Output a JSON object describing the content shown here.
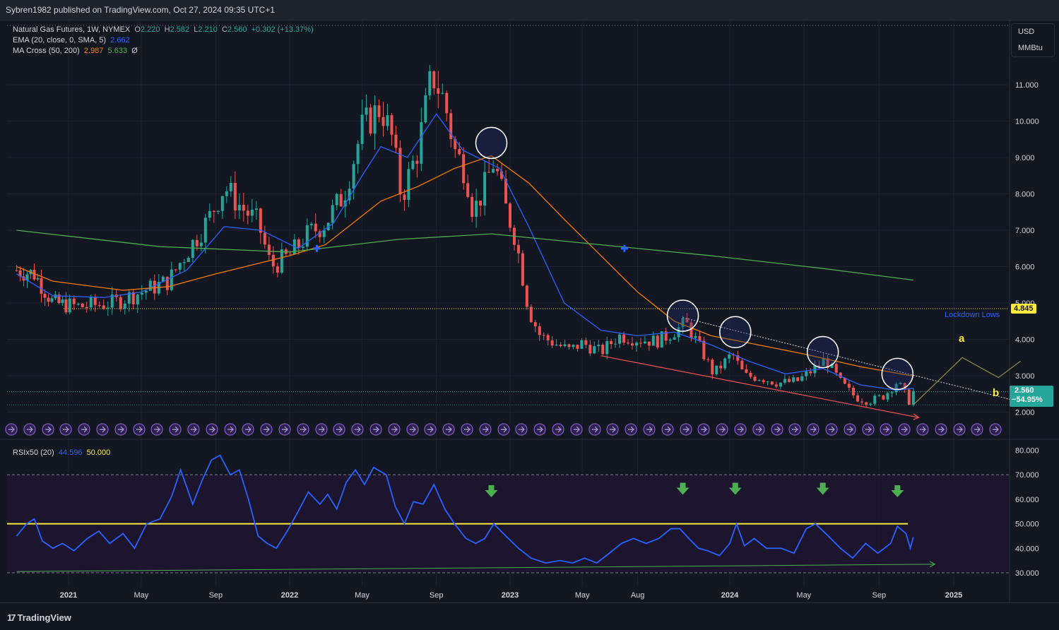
{
  "header": {
    "publisher": "Sybren1982 published on TradingView.com, Oct 27, 2024 09:35 UTC+1"
  },
  "legend": {
    "symbol": "Natural Gas Futures, 1W, NYMEX",
    "ohlc": {
      "o_label": "O",
      "o": "2.220",
      "h_label": "H",
      "h": "2.582",
      "l_label": "L",
      "l": "2.210",
      "c_label": "C",
      "c": "2.560",
      "change": "+0.302 (+13.37%)"
    },
    "ema_label": "EMA (20, close, 0, SMA, 5)",
    "ema_value": "2.662",
    "ma_label": "MA Cross (50, 200)",
    "ma_fast": "2.987",
    "ma_slow": "5.633",
    "ma_extra": "Ø"
  },
  "rsi_legend": {
    "label": "RSIx50 (20)",
    "value": "44.596",
    "level": "50.000"
  },
  "units": {
    "currency": "USD",
    "unit": "MMBtu"
  },
  "tags": {
    "lockdown_label": "Lockdown Lows",
    "lockdown_value": "4.845",
    "price": "2.560",
    "pct": "−54.95%",
    "wave_a": "a",
    "wave_b": "b"
  },
  "footer": {
    "brand": "TradingView"
  },
  "colors": {
    "up": "#26a69a",
    "down": "#ef5350",
    "ema": "#2962ff",
    "ma_fast": "#f57c00",
    "ma_slow": "#4caf50",
    "rsi": "#2962ff",
    "rsi_mid": "#ffeb3b",
    "bg": "#131722"
  },
  "chart_data": [
    {
      "type": "candlestick",
      "title": "Natural Gas Futures, 1W, NYMEX",
      "ylabel": "USD / MMBtu",
      "ylim": [
        1.7,
        12.0
      ],
      "yticks": [
        "11.000",
        "10.000",
        "9.000",
        "8.000",
        "7.000",
        "6.000",
        "5.000",
        "4.000",
        "3.000",
        "2.000"
      ],
      "xticks": [
        "2021",
        "May",
        "Sep",
        "2022",
        "May",
        "Sep",
        "2023",
        "May",
        "Aug",
        "2024",
        "May",
        "Sep",
        "2025"
      ],
      "x_range": [
        "2020-09",
        "2025-04"
      ],
      "close_path": [
        [
          "2020-09-20",
          5.9
        ],
        [
          "2020-10-25",
          5.8
        ],
        [
          "2020-12-01",
          5.0
        ],
        [
          "2021-01-20",
          4.9
        ],
        [
          "2021-03-15",
          5.0
        ],
        [
          "2021-05-01",
          5.3
        ],
        [
          "2021-06-15",
          5.6
        ],
        [
          "2021-07-15",
          6.4
        ],
        [
          "2021-08-20",
          7.3
        ],
        [
          "2021-09-15",
          8.2
        ],
        [
          "2021-10-15",
          7.6
        ],
        [
          "2021-11-10",
          7.2
        ],
        [
          "2021-12-01",
          6.0
        ],
        [
          "2022-01-01",
          6.3
        ],
        [
          "2022-02-01",
          6.9
        ],
        [
          "2022-03-01",
          7.2
        ],
        [
          "2022-04-01",
          8.0
        ],
        [
          "2022-05-01",
          9.8
        ],
        [
          "2022-06-01",
          10.4
        ],
        [
          "2022-06-20",
          9.5
        ],
        [
          "2022-07-05",
          7.9
        ],
        [
          "2022-08-01",
          9.2
        ],
        [
          "2022-08-25",
          11.3
        ],
        [
          "2022-09-15",
          10.5
        ],
        [
          "2022-10-01",
          9.2
        ],
        [
          "2022-10-20",
          8.6
        ],
        [
          "2022-11-01",
          7.5
        ],
        [
          "2022-11-20",
          8.2
        ],
        [
          "2022-12-05",
          8.9
        ],
        [
          "2022-12-25",
          7.6
        ],
        [
          "2023-01-10",
          6.8
        ],
        [
          "2023-02-01",
          4.8
        ],
        [
          "2023-02-20",
          4.1
        ],
        [
          "2023-03-15",
          3.9
        ],
        [
          "2023-04-10",
          3.7
        ],
        [
          "2023-05-01",
          3.9
        ],
        [
          "2023-06-01",
          3.65
        ],
        [
          "2023-07-01",
          4.1
        ],
        [
          "2023-08-01",
          4.0
        ],
        [
          "2023-09-01",
          3.95
        ],
        [
          "2023-09-20",
          4.1
        ],
        [
          "2023-10-20",
          4.45
        ],
        [
          "2023-11-15",
          3.7
        ],
        [
          "2023-12-05",
          3.05
        ],
        [
          "2024-01-05",
          3.6
        ],
        [
          "2024-01-25",
          3.0
        ],
        [
          "2024-02-20",
          2.95
        ],
        [
          "2024-03-20",
          2.8
        ],
        [
          "2024-04-20",
          2.85
        ],
        [
          "2024-05-15",
          3.15
        ],
        [
          "2024-06-05",
          3.45
        ],
        [
          "2024-07-01",
          2.8
        ],
        [
          "2024-07-25",
          2.4
        ],
        [
          "2024-08-15",
          2.3
        ],
        [
          "2024-09-10",
          2.45
        ],
        [
          "2024-10-01",
          2.85
        ],
        [
          "2024-10-20",
          2.3
        ],
        [
          "2024-10-27",
          2.56
        ]
      ],
      "series": [
        {
          "name": "EMA (20, close, 0, SMA, 5)",
          "points": [
            [
              "2020-09-20",
              5.8
            ],
            [
              "2020-12-01",
              5.2
            ],
            [
              "2021-03-01",
              5.15
            ],
            [
              "2021-05-01",
              5.3
            ],
            [
              "2021-07-15",
              5.9
            ],
            [
              "2021-09-15",
              7.1
            ],
            [
              "2021-11-15",
              7.0
            ],
            [
              "2022-01-15",
              6.5
            ],
            [
              "2022-03-15",
              7.2
            ],
            [
              "2022-05-01",
              8.5
            ],
            [
              "2022-06-01",
              9.3
            ],
            [
              "2022-07-15",
              9.0
            ],
            [
              "2022-09-01",
              10.2
            ],
            [
              "2022-10-15",
              9.2
            ],
            [
              "2022-12-15",
              8.7
            ],
            [
              "2023-02-01",
              7.1
            ],
            [
              "2023-04-01",
              5.0
            ],
            [
              "2023-06-01",
              4.25
            ],
            [
              "2023-08-01",
              4.1
            ],
            [
              "2023-10-01",
              4.2
            ],
            [
              "2023-12-01",
              3.85
            ],
            [
              "2024-02-01",
              3.4
            ],
            [
              "2024-04-01",
              3.05
            ],
            [
              "2024-06-01",
              3.2
            ],
            [
              "2024-08-01",
              2.75
            ],
            [
              "2024-10-01",
              2.6
            ],
            [
              "2024-10-27",
              2.66
            ]
          ]
        },
        {
          "name": "MA Cross fast (50)",
          "points": [
            [
              "2020-09-20",
              6.0
            ],
            [
              "2020-12-01",
              5.6
            ],
            [
              "2021-04-01",
              5.35
            ],
            [
              "2021-06-15",
              5.45
            ],
            [
              "2021-09-01",
              5.8
            ],
            [
              "2022-01-01",
              6.3
            ],
            [
              "2022-03-01",
              6.6
            ],
            [
              "2022-06-01",
              7.8
            ],
            [
              "2022-08-01",
              8.2
            ],
            [
              "2022-10-01",
              8.7
            ],
            [
              "2022-12-01",
              9.05
            ],
            [
              "2023-02-01",
              8.3
            ],
            [
              "2023-04-01",
              7.3
            ],
            [
              "2023-06-01",
              6.3
            ],
            [
              "2023-08-01",
              5.3
            ],
            [
              "2023-10-01",
              4.5
            ],
            [
              "2023-12-01",
              4.1
            ],
            [
              "2024-02-01",
              3.9
            ],
            [
              "2024-05-01",
              3.6
            ],
            [
              "2024-08-01",
              3.25
            ],
            [
              "2024-10-27",
              2.99
            ]
          ]
        },
        {
          "name": "MA Cross slow (200)",
          "points": [
            [
              "2020-09-20",
              7.0
            ],
            [
              "2021-06-01",
              6.55
            ],
            [
              "2022-01-01",
              6.4
            ],
            [
              "2022-07-01",
              6.75
            ],
            [
              "2022-12-01",
              6.9
            ],
            [
              "2023-06-01",
              6.6
            ],
            [
              "2023-12-01",
              6.3
            ],
            [
              "2024-06-01",
              5.95
            ],
            [
              "2024-10-27",
              5.63
            ]
          ]
        }
      ],
      "annotations": [
        {
          "type": "hline",
          "name": "Lockdown Lows",
          "value": 4.845
        },
        {
          "type": "hline",
          "name": "Last close",
          "value": 2.56
        },
        {
          "type": "trendline",
          "name": "resistance",
          "from": [
            "2023-10-15",
            4.6
          ],
          "to": [
            "2025-04-15",
            2.3
          ]
        },
        {
          "type": "trendline",
          "name": "support",
          "from": [
            "2023-06-01",
            3.55
          ],
          "to": [
            "2024-11-05",
            1.85
          ]
        },
        {
          "type": "cross",
          "value": 6.5,
          "date": "2022-02-15"
        },
        {
          "type": "cross",
          "value": 6.5,
          "date": "2023-07-10"
        },
        {
          "type": "circle",
          "date": "2022-12-01",
          "value": 9.4
        },
        {
          "type": "circle",
          "date": "2023-10-15",
          "value": 4.65
        },
        {
          "type": "circle",
          "date": "2024-01-10",
          "value": 4.2
        },
        {
          "type": "circle",
          "date": "2024-06-01",
          "value": 3.65
        },
        {
          "type": "circle",
          "date": "2024-10-01",
          "value": 3.05
        },
        {
          "type": "projection",
          "points": [
            [
              "2024-10-27",
              2.2
            ],
            [
              "2025-01-15",
              3.5
            ],
            [
              "2025-03-15",
              2.95
            ],
            [
              "2025-04-20",
              3.4
            ]
          ]
        },
        {
          "type": "wave_label",
          "text": "a",
          "date": "2025-01-20",
          "value": 4.0
        },
        {
          "type": "wave_label",
          "text": "b",
          "date": "2025-04-15",
          "value": 2.45
        }
      ]
    },
    {
      "type": "line",
      "title": "RSIx50 (20)",
      "ylim": [
        28,
        82
      ],
      "yticks": [
        "80.000",
        "70.000",
        "60.000",
        "50.000",
        "40.000",
        "30.000"
      ],
      "bands": [
        70,
        30
      ],
      "mid_line": 50,
      "series": [
        {
          "name": "RSIx50 (20)",
          "points": [
            [
              "2020-09-20",
              45
            ],
            [
              "2020-10-10",
              50
            ],
            [
              "2020-10-25",
              52
            ],
            [
              "2020-11-10",
              43
            ],
            [
              "2020-12-01",
              40
            ],
            [
              "2020-12-20",
              42
            ],
            [
              "2021-01-10",
              39
            ],
            [
              "2021-02-01",
              44
            ],
            [
              "2021-02-20",
              47
            ],
            [
              "2021-03-10",
              42
            ],
            [
              "2021-04-01",
              46
            ],
            [
              "2021-04-20",
              40
            ],
            [
              "2021-05-10",
              50
            ],
            [
              "2021-06-01",
              52
            ],
            [
              "2021-06-20",
              61
            ],
            [
              "2021-07-05",
              72
            ],
            [
              "2021-07-25",
              58
            ],
            [
              "2021-08-10",
              68
            ],
            [
              "2021-08-25",
              76
            ],
            [
              "2021-09-08",
              78
            ],
            [
              "2021-09-25",
              70
            ],
            [
              "2021-10-10",
              72
            ],
            [
              "2021-10-25",
              60
            ],
            [
              "2021-11-10",
              45
            ],
            [
              "2021-11-25",
              42
            ],
            [
              "2021-12-10",
              40
            ],
            [
              "2021-12-28",
              47
            ],
            [
              "2022-01-15",
              55
            ],
            [
              "2022-02-01",
              63
            ],
            [
              "2022-02-20",
              58
            ],
            [
              "2022-03-05",
              62
            ],
            [
              "2022-03-20",
              56
            ],
            [
              "2022-04-05",
              67
            ],
            [
              "2022-04-20",
              72
            ],
            [
              "2022-05-05",
              66
            ],
            [
              "2022-05-20",
              73
            ],
            [
              "2022-06-10",
              70
            ],
            [
              "2022-06-25",
              57
            ],
            [
              "2022-07-10",
              50
            ],
            [
              "2022-07-25",
              59
            ],
            [
              "2022-08-10",
              58
            ],
            [
              "2022-08-28",
              66
            ],
            [
              "2022-09-15",
              56
            ],
            [
              "2022-10-01",
              50
            ],
            [
              "2022-10-20",
              44
            ],
            [
              "2022-11-05",
              42
            ],
            [
              "2022-11-20",
              44
            ],
            [
              "2022-12-05",
              50
            ],
            [
              "2022-12-25",
              45
            ],
            [
              "2023-01-15",
              40
            ],
            [
              "2023-02-05",
              36
            ],
            [
              "2023-03-01",
              34
            ],
            [
              "2023-03-25",
              35
            ],
            [
              "2023-04-15",
              34
            ],
            [
              "2023-05-05",
              36
            ],
            [
              "2023-05-25",
              34
            ],
            [
              "2023-06-15",
              38
            ],
            [
              "2023-07-05",
              42
            ],
            [
              "2023-07-25",
              44
            ],
            [
              "2023-08-15",
              42
            ],
            [
              "2023-09-05",
              44
            ],
            [
              "2023-09-25",
              48
            ],
            [
              "2023-10-10",
              48
            ],
            [
              "2023-10-25",
              44
            ],
            [
              "2023-11-10",
              40
            ],
            [
              "2023-11-25",
              39
            ],
            [
              "2023-12-15",
              37
            ],
            [
              "2024-01-01",
              42
            ],
            [
              "2024-01-12",
              50
            ],
            [
              "2024-01-25",
              41
            ],
            [
              "2024-02-10",
              44
            ],
            [
              "2024-03-01",
              40
            ],
            [
              "2024-03-25",
              40
            ],
            [
              "2024-04-15",
              38
            ],
            [
              "2024-05-05",
              48
            ],
            [
              "2024-05-20",
              50
            ],
            [
              "2024-06-10",
              45
            ],
            [
              "2024-06-30",
              40
            ],
            [
              "2024-07-20",
              36
            ],
            [
              "2024-08-10",
              42
            ],
            [
              "2024-08-30",
              38
            ],
            [
              "2024-09-20",
              42
            ],
            [
              "2024-10-01",
              49
            ],
            [
              "2024-10-15",
              46
            ],
            [
              "2024-10-22",
              40
            ],
            [
              "2024-10-27",
              44.6
            ]
          ]
        }
      ],
      "annotations": [
        {
          "type": "trendline",
          "from": [
            "2020-09-20",
            30.5
          ],
          "to": [
            "2024-12-01",
            33.5
          ]
        },
        {
          "type": "arrow_down",
          "date": "2022-12-01",
          "value": 62
        },
        {
          "type": "arrow_down",
          "date": "2023-10-15",
          "value": 63
        },
        {
          "type": "arrow_down",
          "date": "2024-01-10",
          "value": 63
        },
        {
          "type": "arrow_down",
          "date": "2024-06-01",
          "value": 63
        },
        {
          "type": "arrow_down",
          "date": "2024-10-01",
          "value": 62
        }
      ]
    }
  ]
}
